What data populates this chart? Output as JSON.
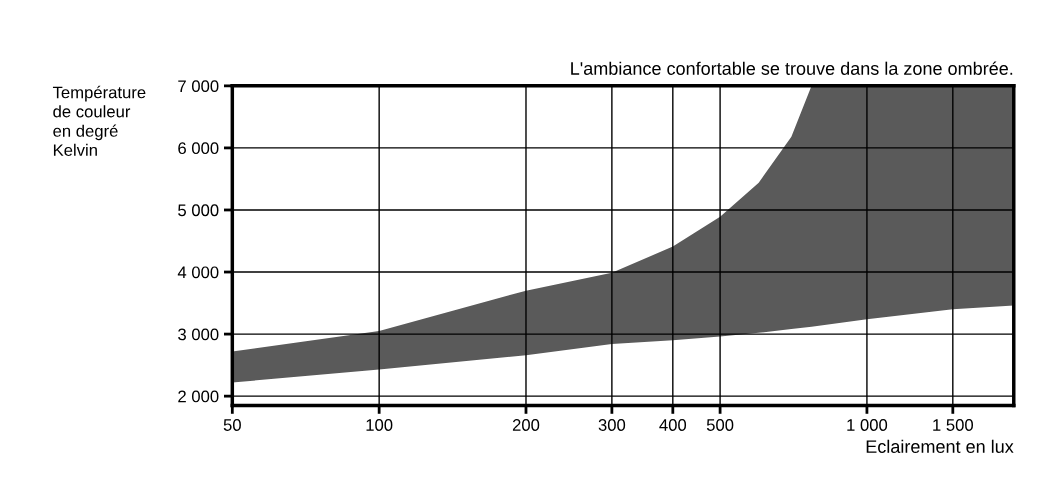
{
  "chart_data": {
    "type": "area",
    "title": "L'ambiance confortable se trouve dans la zone ombrée.",
    "xlabel": "Eclairement en lux",
    "ylabel": "Température\nde couleur\nen degré\nKelvin",
    "x": [
      50,
      100,
      200,
      300,
      400,
      500,
      600,
      700,
      770,
      1000,
      1500,
      2000
    ],
    "series": [
      {
        "color": "#5a5a5a",
        "values": [
          2720,
          3050,
          3700,
          3990,
          4410,
          4890,
          5440,
          6180,
          7000,
          7000,
          7000,
          7000
        ]
      },
      {
        "color": "#ffffff",
        "values": [
          2220,
          2430,
          2660,
          2840,
          2900,
          2960,
          3020,
          3080,
          3120,
          3240,
          3400,
          3460
        ]
      }
    ],
    "log": "x",
    "xlim": [
      50,
      2000
    ],
    "ylim": [
      1850,
      7000
    ],
    "xticks": [
      50,
      100,
      200,
      300,
      400,
      500,
      {
        "value": 1000,
        "label": "1 000"
      },
      {
        "value": 1500,
        "label": "1 500"
      }
    ],
    "yticks": [
      {
        "value": 2000,
        "label": "2 000"
      },
      {
        "value": 3000,
        "label": "3 000"
      },
      {
        "value": 4000,
        "label": "4 000"
      },
      {
        "value": 5000,
        "label": "5 000"
      },
      {
        "value": 6000,
        "label": "6 000"
      },
      {
        "value": 7000,
        "label": "7 000"
      }
    ],
    "grid": true
  }
}
